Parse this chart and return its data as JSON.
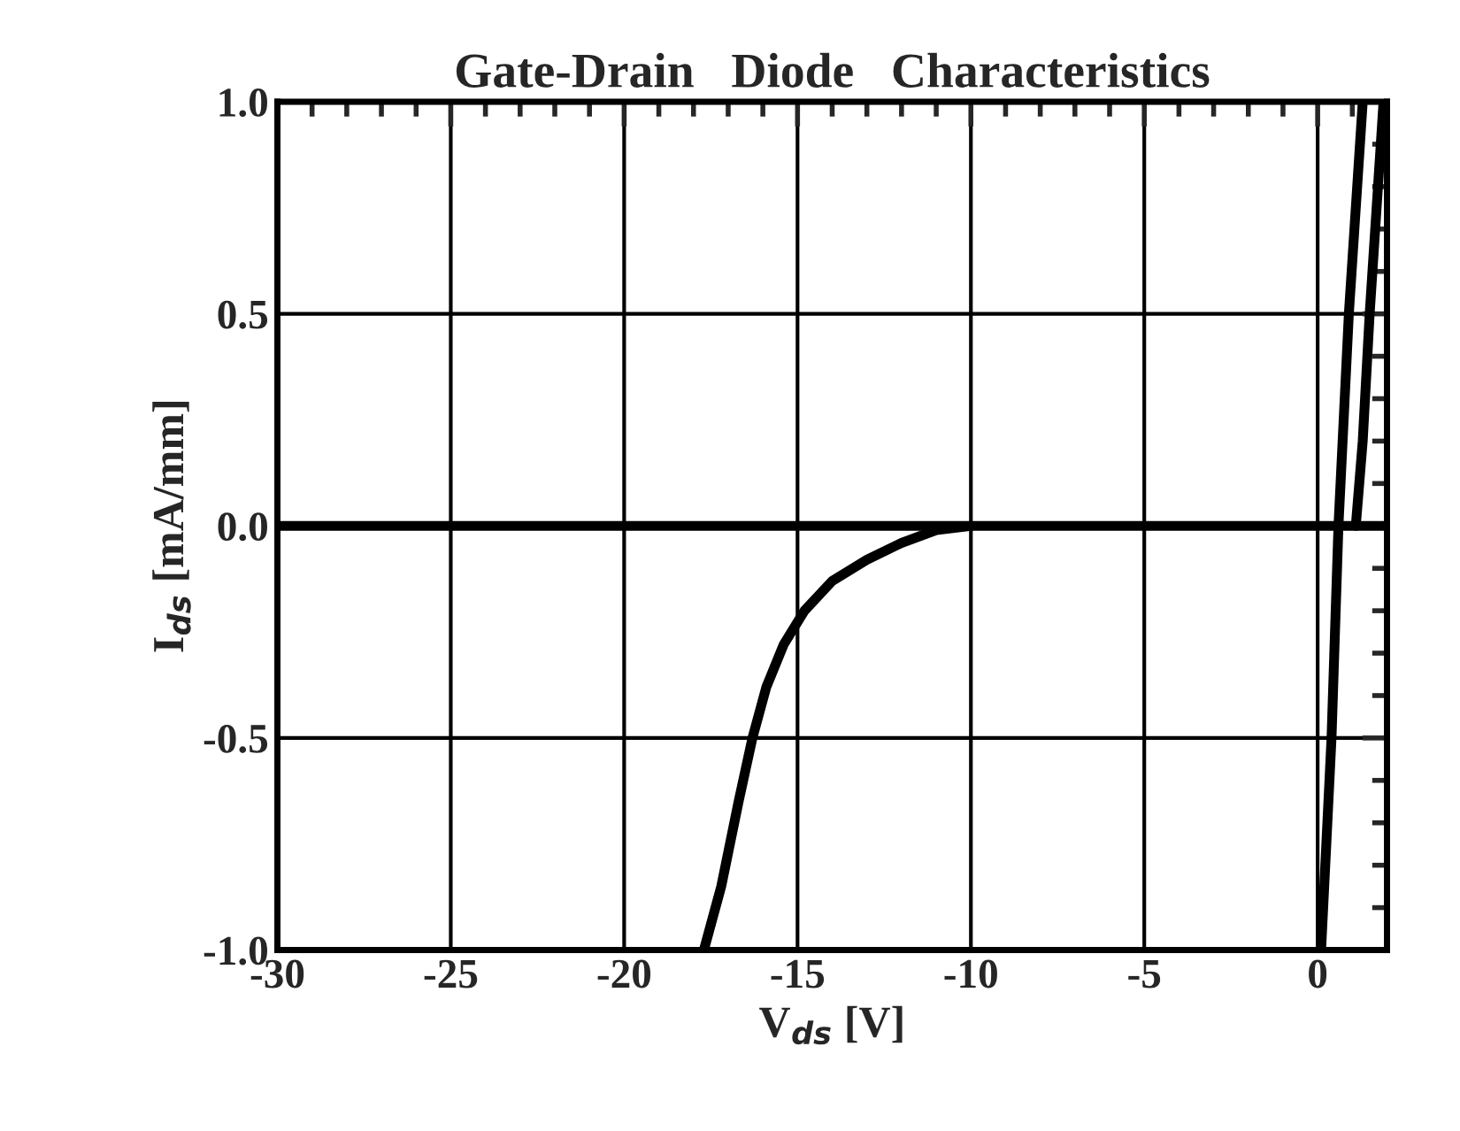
{
  "chart_data": {
    "type": "line",
    "title": "Gate-Drain   Diode   Characteristics",
    "xlabel": "V$_{ds}$ [V]",
    "ylabel": "I$_{ds}$ [mA/mm]",
    "xlim": [
      -30,
      2
    ],
    "xticks": [
      -30,
      -25,
      -20,
      -15,
      -10,
      -5,
      0
    ],
    "ylim": [
      -1.0,
      1.0
    ],
    "yticks": [
      {
        "value": -1.0,
        "label": "-1.0"
      },
      {
        "value": -0.5,
        "label": "-0.5"
      },
      {
        "value": 0.0,
        "label": "0.0"
      },
      {
        "value": 0.5,
        "label": "0.5"
      },
      {
        "value": 1.0,
        "label": "1.0"
      }
    ],
    "grid": true,
    "marker": "none",
    "line_style": "solid",
    "series": [
      {
        "color": "#000000",
        "x": [
          -30,
          -20,
          -10,
          0,
          2
        ],
        "values": [
          0.0,
          0.0,
          0.0,
          0.0,
          0.0
        ]
      },
      {
        "color": "#000000",
        "x": [
          -17.7,
          -17.2,
          -16.7,
          -16.3,
          -15.9,
          -15.4,
          -14.8,
          -14,
          -13,
          -12,
          -11,
          -10
        ],
        "values": [
          -1.0,
          -0.85,
          -0.65,
          -0.5,
          -0.38,
          -0.28,
          -0.2,
          -0.13,
          -0.08,
          -0.04,
          -0.01,
          0.0
        ]
      },
      {
        "color": "#000000",
        "x": [
          0.1,
          0.4,
          0.6,
          0.9,
          1.3
        ],
        "values": [
          -1.0,
          -0.5,
          0.0,
          0.5,
          1.0
        ]
      },
      {
        "color": "#000000",
        "x": [
          1.1,
          1.3,
          1.5,
          1.7,
          1.9
        ],
        "values": [
          0.0,
          0.2,
          0.5,
          0.75,
          1.0
        ]
      }
    ]
  }
}
